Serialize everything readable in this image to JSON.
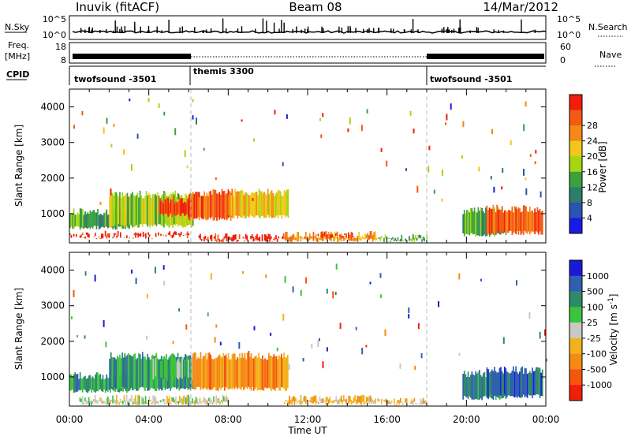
{
  "header": {
    "station": "Inuvik (fitACF)",
    "beam": "Beam 08",
    "date": "14/Mar/2012"
  },
  "top_panels": {
    "nsky_label": "N.Sky",
    "nsky_left_ticks": [
      "10^5",
      "10^0"
    ],
    "nsky_right_ticks": [
      "10^5",
      "10^0"
    ],
    "nsearch_label": "N.Search",
    "freq_label_line1": "Freq.",
    "freq_label_line2": "[MHz]",
    "freq_ticks": [
      "18",
      "8"
    ],
    "nave_ticks": [
      "60",
      "0"
    ],
    "nave_label": "Nave",
    "cpid_label": "CPID",
    "cpid_segments": [
      {
        "label": "twofsound -3501",
        "start_hour": 0,
        "end_hour": 6
      },
      {
        "label": "themis 3300",
        "start_hour": 6,
        "end_hour": 18
      },
      {
        "label": "twofsound -3501",
        "start_hour": 18,
        "end_hour": 24
      }
    ]
  },
  "x_axis": {
    "label": "Time UT",
    "ticks": [
      "00:00",
      "04:00",
      "08:00",
      "12:00",
      "16:00",
      "20:00",
      "00:00"
    ]
  },
  "colors": {
    "power": [
      "#1a1ae6",
      "#2a54b0",
      "#2e7d68",
      "#3aa040",
      "#a6d610",
      "#f0c81a",
      "#f58a14",
      "#f45a14",
      "#f01e0a"
    ],
    "velocity": [
      "#f01e0a",
      "#f4560e",
      "#f58a14",
      "#f2b21c",
      "#c8c8c8",
      "#3cc43c",
      "#2e8a6a",
      "#2f5fb0",
      "#1a1ad6"
    ]
  },
  "chart_data": [
    {
      "type": "heatmap",
      "name": "power",
      "title": "",
      "xlabel": "Time UT",
      "ylabel": "Slant Range [km]",
      "colorbar_label": "Power [dB]",
      "xlim_hours": [
        0,
        24
      ],
      "ylim": [
        180,
        4500
      ],
      "y_ticks": [
        1000,
        2000,
        3000,
        4000
      ],
      "colorbar_ticks": [
        "4",
        "8",
        "12",
        "16",
        "20",
        "24",
        "28"
      ],
      "regions": [
        {
          "t0": 0.0,
          "t1": 6.0,
          "r0": 300,
          "r1": 520,
          "level": 8
        },
        {
          "t0": 0.0,
          "t1": 3.0,
          "r0": 550,
          "r1": 1150,
          "level": 3
        },
        {
          "t0": 2.0,
          "t1": 6.2,
          "r0": 600,
          "r1": 1650,
          "level": 4
        },
        {
          "t0": 4.5,
          "t1": 6.0,
          "r0": 900,
          "r1": 1500,
          "level": 8
        },
        {
          "t0": 6.0,
          "t1": 8.2,
          "r0": 800,
          "r1": 1700,
          "level": 7
        },
        {
          "t0": 6.5,
          "t1": 11.0,
          "r0": 200,
          "r1": 450,
          "level": 8
        },
        {
          "t0": 8.0,
          "t1": 11.0,
          "r0": 850,
          "r1": 1700,
          "level": 5
        },
        {
          "t0": 10.8,
          "t1": 15.5,
          "r0": 200,
          "r1": 520,
          "level": 6
        },
        {
          "t0": 12.5,
          "t1": 14.5,
          "r0": 300,
          "r1": 500,
          "level": 8
        },
        {
          "t0": 15.5,
          "t1": 18.0,
          "r0": 200,
          "r1": 430,
          "level": 3
        },
        {
          "t0": 19.8,
          "t1": 22.0,
          "r0": 350,
          "r1": 1200,
          "level": 3
        },
        {
          "t0": 21.0,
          "t1": 23.8,
          "r0": 400,
          "r1": 1250,
          "level": 7
        }
      ]
    },
    {
      "type": "heatmap",
      "name": "velocity",
      "title": "",
      "xlabel": "Time UT",
      "ylabel": "Slant Range [km]",
      "colorbar_label": "Velocity [m s^-1]",
      "xlim_hours": [
        0,
        24
      ],
      "ylim": [
        180,
        4500
      ],
      "y_ticks": [
        1000,
        2000,
        3000,
        4000
      ],
      "colorbar_ticks": [
        "1000",
        "500",
        "100",
        "25",
        "-25",
        "-100",
        "-500",
        "-1000"
      ],
      "regions": [
        {
          "t0": 0.0,
          "t1": 3.0,
          "r0": 550,
          "r1": 1150,
          "level": 2
        },
        {
          "t0": 2.0,
          "t1": 6.2,
          "r0": 600,
          "r1": 1700,
          "level": 2
        },
        {
          "t0": 4.0,
          "t1": 6.2,
          "r0": 900,
          "r1": 1600,
          "level": 3
        },
        {
          "t0": 0.5,
          "t1": 8.0,
          "r0": 200,
          "r1": 500,
          "level": 4
        },
        {
          "t0": 6.2,
          "t1": 11.0,
          "r0": 600,
          "r1": 1700,
          "level": 6
        },
        {
          "t0": 10.8,
          "t1": 15.5,
          "r0": 200,
          "r1": 500,
          "level": 5
        },
        {
          "t0": 15.5,
          "t1": 18.0,
          "r0": 200,
          "r1": 420,
          "level": 5
        },
        {
          "t0": 19.8,
          "t1": 22.0,
          "r0": 350,
          "r1": 1200,
          "level": 2
        },
        {
          "t0": 21.0,
          "t1": 23.8,
          "r0": 400,
          "r1": 1300,
          "level": 1
        }
      ]
    }
  ]
}
